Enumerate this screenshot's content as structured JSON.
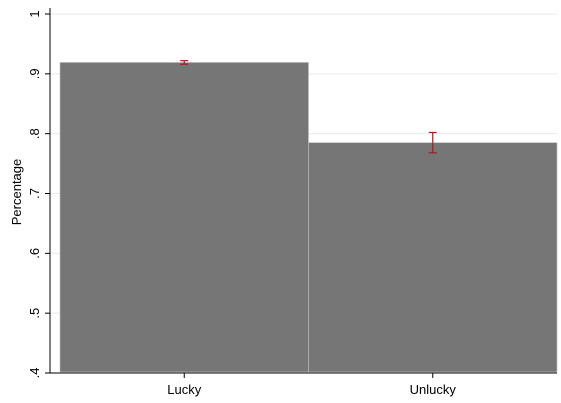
{
  "chart_data": {
    "type": "bar",
    "title": "",
    "xlabel": "",
    "ylabel": "Percentage",
    "ylim": [
      0.4,
      1.0
    ],
    "yticks": [
      0.4,
      0.5,
      0.6,
      0.7,
      0.8,
      0.9,
      1.0
    ],
    "ytick_labels": [
      ".4",
      ".5",
      ".6",
      ".7",
      ".8",
      ".9",
      "1"
    ],
    "categories": [
      "Lucky",
      "Unlucky"
    ],
    "values": [
      0.919,
      0.785
    ],
    "error_bars": [
      {
        "low": 0.916,
        "high": 0.922
      },
      {
        "low": 0.768,
        "high": 0.802
      }
    ],
    "grid": true,
    "bar_color": "#767676",
    "error_color": "#a02020"
  }
}
